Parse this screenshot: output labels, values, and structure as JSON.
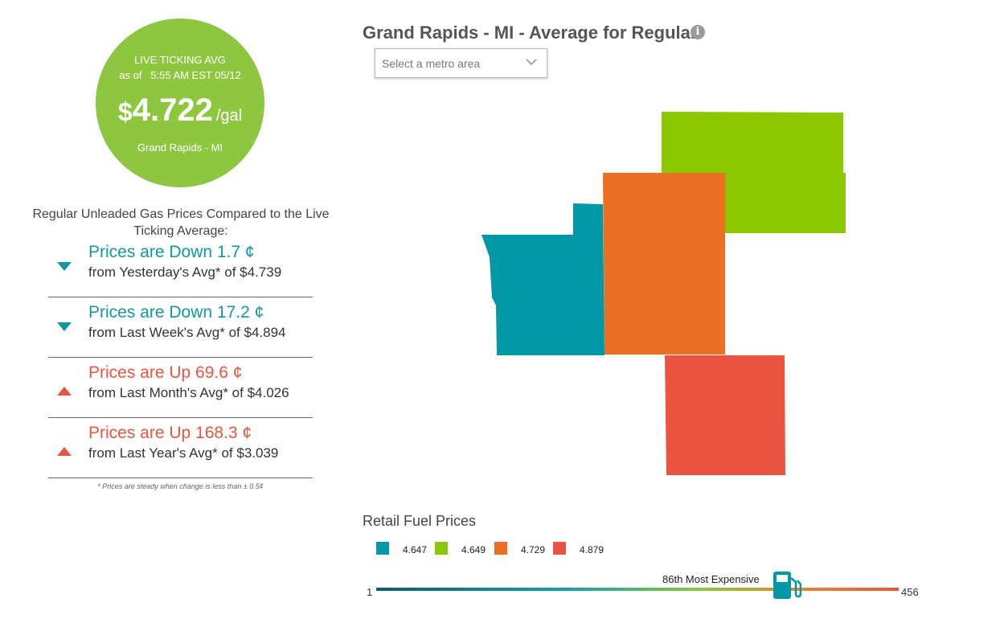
{
  "live_avg": {
    "label": "LIVE TICKING AVG",
    "as_of": "as of   5:55 AM EST 05/12",
    "currency": "$",
    "price": "4.722",
    "unit": "/gal",
    "city": "Grand Rapids - MI",
    "color": "#8dc63f"
  },
  "compare_title": "Regular Unleaded Gas Prices Compared to the Live Ticking Average:",
  "changes": [
    {
      "direction": "down",
      "headline": "Prices are Down 1.7 ¢",
      "detail": "from Yesterday's Avg* of $4.739"
    },
    {
      "direction": "down",
      "headline": "Prices are Down 17.2 ¢",
      "detail": "from Last Week's Avg* of $4.894"
    },
    {
      "direction": "up",
      "headline": "Prices are Up 69.6 ¢",
      "detail": "from Last Month's Avg* of $4.026"
    },
    {
      "direction": "up",
      "headline": "Prices are Up 168.3 ¢",
      "detail": "from Last Year's Avg* of $3.039"
    }
  ],
  "footnote": "* Prices are steady when change is less than ± 0.5¢",
  "map": {
    "title": "Grand Rapids - MI - Average for Regular",
    "info_icon": "info-icon",
    "metro_placeholder": "Select a metro area"
  },
  "legend": {
    "title": "Retail Fuel Prices",
    "items": [
      {
        "value": "4.647",
        "color": "#0097a7"
      },
      {
        "value": "4.649",
        "color": "#8cc800"
      },
      {
        "value": "4.729",
        "color": "#ec6f24"
      },
      {
        "value": "4.879",
        "color": "#ea5440"
      }
    ]
  },
  "rank": {
    "min": "1",
    "max": "456",
    "label": "86th Most Expensive",
    "rank_value": 86,
    "icon": "gas-pump-icon"
  }
}
